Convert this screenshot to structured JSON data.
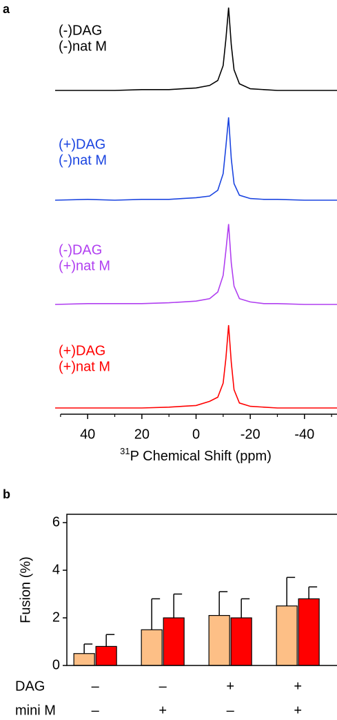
{
  "chart_data": [
    {
      "type": "line",
      "panel": "a",
      "x_label_sup": "31",
      "x_label": "P Chemical Shift (ppm)",
      "xlim": [
        52,
        -52
      ],
      "xticks": [
        40,
        20,
        0,
        -20,
        -40
      ],
      "xminor": [
        50,
        30,
        10,
        -10,
        -30,
        -50
      ],
      "x": [
        52,
        40,
        30,
        20,
        10,
        5,
        0,
        -5,
        -8,
        -10,
        -11,
        -12,
        -13,
        -14,
        -16,
        -20,
        -25,
        -30,
        -40,
        -52
      ],
      "series": [
        {
          "name": "(-)DAG (-)nat M",
          "label_lines": [
            "(-)DAG",
            "(-)nat M"
          ],
          "color": "#000000",
          "values": [
            0,
            0,
            0,
            0.01,
            0.01,
            0.02,
            0.03,
            0.06,
            0.12,
            0.3,
            0.62,
            1,
            0.55,
            0.25,
            0.08,
            0.02,
            0.01,
            0,
            0,
            0
          ]
        },
        {
          "name": "(+)DAG (-)nat M",
          "label_lines": [
            "(+)DAG",
            "(-)nat M"
          ],
          "color": "#1a44e0",
          "values": [
            0,
            0.01,
            0,
            0.01,
            0.01,
            0.02,
            0.03,
            0.05,
            0.12,
            0.32,
            0.65,
            1,
            0.5,
            0.2,
            0.06,
            0.02,
            0.01,
            0.01,
            0,
            0
          ]
        },
        {
          "name": "(-)DAG (+)nat M",
          "label_lines": [
            "(-)DAG",
            "(+)nat M"
          ],
          "color": "#b03ef0",
          "values": [
            0,
            0.01,
            0.01,
            0.01,
            0.02,
            0.03,
            0.04,
            0.07,
            0.15,
            0.35,
            0.65,
            0.97,
            0.5,
            0.22,
            0.07,
            0.03,
            0.01,
            0.01,
            0,
            0
          ]
        },
        {
          "name": "(+)DAG (+)nat M",
          "label_lines": [
            "(+)DAG",
            "(+)nat M"
          ],
          "color": "#ff0000",
          "values": [
            0,
            0,
            0,
            0,
            0.01,
            0.02,
            0.03,
            0.08,
            0.13,
            0.3,
            0.6,
            1,
            0.55,
            0.22,
            0.06,
            0.02,
            0.01,
            0,
            0,
            0
          ]
        }
      ]
    },
    {
      "type": "bar",
      "panel": "b",
      "y_label": "Fusion (%)",
      "ylim": [
        0,
        6.35
      ],
      "yticks": [
        0,
        2,
        4,
        6
      ],
      "categories": [
        null,
        null,
        null,
        null
      ],
      "row_labels": [
        "DAG",
        "mini M"
      ],
      "rows": [
        [
          "–",
          "–",
          "+",
          "+"
        ],
        [
          "–",
          "+",
          "–",
          "+"
        ]
      ],
      "series": [
        {
          "color": "#fdbf86",
          "values": [
            0.5,
            1.5,
            2.1,
            2.5
          ],
          "errors": [
            0.4,
            1.3,
            1.0,
            1.2
          ]
        },
        {
          "color": "#ff0000",
          "values": [
            0.8,
            2.0,
            2.0,
            2.8
          ],
          "errors": [
            0.5,
            1.0,
            0.8,
            0.5
          ]
        }
      ]
    }
  ]
}
